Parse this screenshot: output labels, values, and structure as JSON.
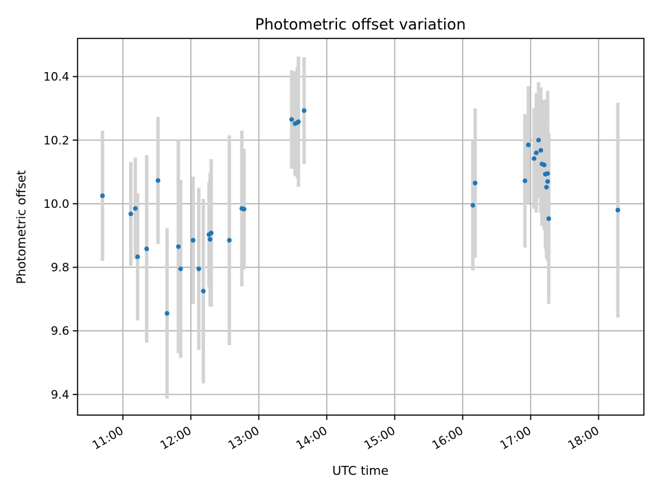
{
  "chart_data": {
    "type": "scatter",
    "title": "Photometric offset variation",
    "xlabel": "UTC time",
    "ylabel": "Photometric offset",
    "x_unit": "time of day (hours, UTC)",
    "xlim": [
      "10:20",
      "18:40"
    ],
    "ylim": [
      9.335,
      10.52
    ],
    "x_ticks": [
      "11:00",
      "12:00",
      "13:00",
      "14:00",
      "15:00",
      "16:00",
      "17:00",
      "18:00"
    ],
    "y_ticks": [
      "9.4",
      "9.6",
      "9.8",
      "10.0",
      "10.2",
      "10.4"
    ],
    "grid": true,
    "colors": {
      "marker": "#1f77b4",
      "errorbar": "#d3d3d3",
      "grid": "#b0b0b0"
    },
    "series": [
      {
        "points": [
          {
            "x": "10:42",
            "y": 10.025,
            "err": 0.205
          },
          {
            "x": "11:07",
            "y": 9.968,
            "err": 0.163
          },
          {
            "x": "11:11",
            "y": 9.985,
            "err": 0.16
          },
          {
            "x": "11:13",
            "y": 9.833,
            "err": 0.2
          },
          {
            "x": "11:21",
            "y": 9.858,
            "err": 0.295
          },
          {
            "x": "11:31",
            "y": 10.073,
            "err": 0.2
          },
          {
            "x": "11:39",
            "y": 9.655,
            "err": 0.268
          },
          {
            "x": "11:49",
            "y": 9.865,
            "err": 0.335
          },
          {
            "x": "11:51",
            "y": 9.795,
            "err": 0.28
          },
          {
            "x": "12:02",
            "y": 9.885,
            "err": 0.2
          },
          {
            "x": "12:07",
            "y": 9.795,
            "err": 0.255
          },
          {
            "x": "12:11",
            "y": 9.725,
            "err": 0.29
          },
          {
            "x": "12:16",
            "y": 9.903,
            "err": 0.165
          },
          {
            "x": "12:17",
            "y": 9.888,
            "err": 0.21
          },
          {
            "x": "12:18",
            "y": 9.908,
            "err": 0.232
          },
          {
            "x": "12:34",
            "y": 9.885,
            "err": 0.33
          },
          {
            "x": "12:45",
            "y": 9.985,
            "err": 0.245
          },
          {
            "x": "12:47",
            "y": 9.983,
            "err": 0.19
          },
          {
            "x": "13:29",
            "y": 10.265,
            "err": 0.155
          },
          {
            "x": "13:32",
            "y": 10.252,
            "err": 0.165
          },
          {
            "x": "13:34",
            "y": 10.255,
            "err": 0.175
          },
          {
            "x": "13:35",
            "y": 10.258,
            "err": 0.205
          },
          {
            "x": "13:40",
            "y": 10.293,
            "err": 0.168
          },
          {
            "x": "16:09",
            "y": 9.995,
            "err": 0.205
          },
          {
            "x": "16:11",
            "y": 10.065,
            "err": 0.235
          },
          {
            "x": "16:55",
            "y": 10.072,
            "err": 0.21
          },
          {
            "x": "16:58",
            "y": 10.185,
            "err": 0.185
          },
          {
            "x": "17:03",
            "y": 10.142,
            "err": 0.158
          },
          {
            "x": "17:05",
            "y": 10.16,
            "err": 0.188
          },
          {
            "x": "17:07",
            "y": 10.2,
            "err": 0.182
          },
          {
            "x": "17:09",
            "y": 10.168,
            "err": 0.198
          },
          {
            "x": "17:10",
            "y": 10.125,
            "err": 0.195
          },
          {
            "x": "17:12",
            "y": 10.122,
            "err": 0.205
          },
          {
            "x": "17:13",
            "y": 10.093,
            "err": 0.235
          },
          {
            "x": "17:14",
            "y": 10.052,
            "err": 0.225
          },
          {
            "x": "17:15",
            "y": 10.095,
            "err": 0.26
          },
          {
            "x": "17:15",
            "y": 10.07,
            "err": 0.25
          },
          {
            "x": "17:16",
            "y": 9.953,
            "err": 0.268
          },
          {
            "x": "18:17",
            "y": 9.98,
            "err": 0.338
          }
        ]
      }
    ]
  }
}
